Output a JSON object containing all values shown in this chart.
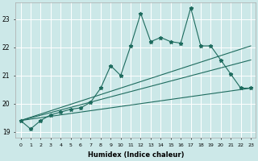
{
  "xlabel": "Humidex (Indice chaleur)",
  "bg_color": "#cce8e8",
  "line_color": "#1e6b5e",
  "grid_color": "#ffffff",
  "xlim": [
    -0.5,
    23.5
  ],
  "ylim": [
    18.8,
    23.6
  ],
  "yticks": [
    19,
    20,
    21,
    22,
    23
  ],
  "xticks": [
    0,
    1,
    2,
    3,
    4,
    5,
    6,
    7,
    8,
    9,
    10,
    11,
    12,
    13,
    14,
    15,
    16,
    17,
    18,
    19,
    20,
    21,
    22,
    23
  ],
  "series": {
    "line1_x": [
      0,
      1,
      2,
      3,
      4,
      5,
      6,
      7,
      8,
      9,
      10,
      11,
      12,
      13,
      14,
      15,
      16,
      17,
      18,
      19,
      20,
      21,
      22,
      23
    ],
    "line1_y": [
      19.4,
      19.1,
      19.4,
      19.6,
      19.7,
      19.8,
      19.85,
      20.05,
      20.55,
      21.35,
      21.0,
      22.05,
      23.2,
      22.2,
      22.35,
      22.2,
      22.15,
      23.4,
      22.05,
      22.05,
      21.55,
      21.05,
      20.55,
      20.55
    ],
    "line2_x": [
      0,
      23
    ],
    "line2_y": [
      19.4,
      22.05
    ],
    "line3_x": [
      0,
      23
    ],
    "line3_y": [
      19.4,
      21.55
    ],
    "line4_x": [
      0,
      23
    ],
    "line4_y": [
      19.4,
      20.55
    ]
  }
}
